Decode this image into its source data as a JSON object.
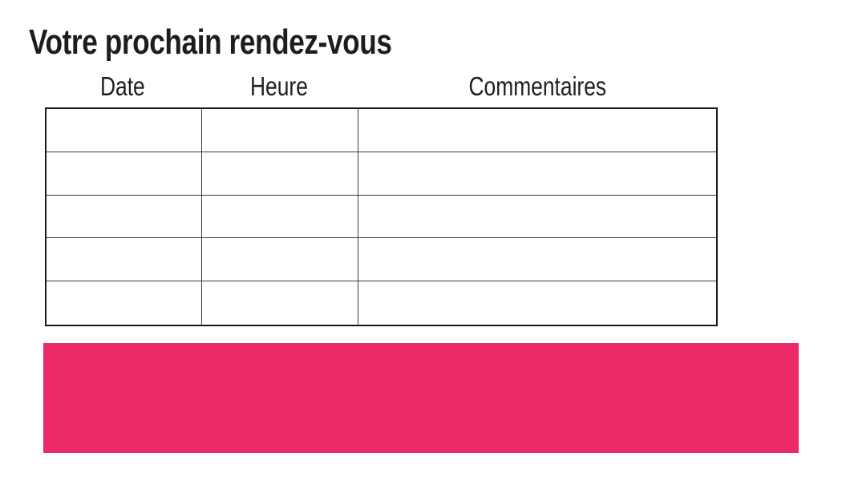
{
  "colors": {
    "banner_pink": "#ED2A67",
    "text_black": "#1D1D1B",
    "table_border_outer": "#1A1A1A",
    "table_border_inner": "#3A3A3A",
    "background": "#FFFFFF"
  },
  "header": {
    "title": "Votre prochain rendez-vous"
  },
  "appointments_table": {
    "columns": [
      {
        "id": "date",
        "label": "Date"
      },
      {
        "id": "heure",
        "label": "Heure"
      },
      {
        "id": "commentaires",
        "label": "Commentaires"
      }
    ],
    "rows": [
      [
        "",
        "",
        ""
      ],
      [
        "",
        "",
        ""
      ],
      [
        "",
        "",
        ""
      ],
      [
        "",
        "",
        ""
      ],
      [
        "",
        "",
        ""
      ]
    ]
  },
  "banner": {
    "label": ""
  }
}
